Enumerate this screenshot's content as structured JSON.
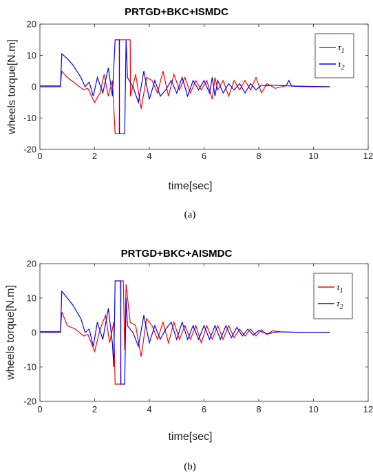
{
  "chart_data": [
    {
      "type": "line",
      "panel": "a",
      "title": "PRTGD+BKC+ISMDC",
      "xlabel": "time[sec]",
      "ylabel": "wheels torque[N.m]",
      "xlim": [
        0,
        12
      ],
      "ylim": [
        -20,
        20
      ],
      "xticks": [
        0,
        2,
        4,
        6,
        8,
        10,
        12
      ],
      "yticks": [
        -20,
        -10,
        0,
        10,
        20
      ],
      "caption": "(a)",
      "legend": {
        "position": "top-right",
        "entries": [
          "τ1",
          "τ2"
        ]
      },
      "series": [
        {
          "name": "τ1",
          "color": "#ff0000",
          "x": [
            0,
            0.75,
            0.8,
            1.0,
            1.3,
            1.6,
            1.75,
            2.0,
            2.2,
            2.35,
            2.5,
            2.65,
            2.75,
            2.76,
            2.9,
            2.91,
            3.0,
            3.1,
            3.11,
            3.3,
            3.31,
            3.5,
            3.7,
            3.9,
            4.1,
            4.3,
            4.5,
            4.7,
            4.9,
            5.1,
            5.3,
            5.5,
            5.7,
            5.9,
            6.1,
            6.3,
            6.4,
            6.5,
            6.7,
            6.9,
            7.1,
            7.3,
            7.5,
            7.7,
            7.9,
            8.1,
            8.3,
            8.6,
            9.0,
            9.5,
            10.0,
            10.6
          ],
          "y": [
            0.3,
            0.3,
            5,
            3,
            1,
            -1,
            -0.5,
            -5,
            -2,
            4,
            -3,
            2,
            -15,
            -15,
            -15,
            15,
            15,
            15,
            15,
            15,
            -3,
            4,
            -7,
            3,
            2,
            -2,
            5,
            -3,
            4,
            -1,
            3,
            -2,
            2,
            -1,
            2,
            -4,
            3,
            -1,
            2,
            -3,
            2,
            -1,
            2,
            -1,
            3,
            -2,
            1,
            -0.5,
            0.3,
            0.2,
            0.1,
            0
          ]
        },
        {
          "name": "τ2",
          "color": "#0000ff",
          "x": [
            0,
            0.75,
            0.8,
            1.0,
            1.2,
            1.35,
            1.5,
            1.65,
            1.8,
            1.95,
            2.1,
            2.3,
            2.5,
            2.65,
            2.75,
            2.76,
            2.85,
            2.9,
            2.91,
            3.0,
            3.05,
            3.1,
            3.15,
            3.2,
            3.4,
            3.6,
            3.8,
            4.0,
            4.2,
            4.4,
            4.6,
            4.8,
            5.0,
            5.2,
            5.4,
            5.6,
            5.8,
            6.0,
            6.2,
            6.3,
            6.4,
            6.5,
            6.7,
            6.9,
            7.1,
            7.3,
            7.5,
            7.7,
            7.9,
            8.1,
            8.3,
            8.5,
            9.0,
            9.1,
            9.2,
            9.5,
            10.0,
            10.6
          ],
          "y": [
            0,
            0,
            10.5,
            9,
            7,
            5,
            3,
            0,
            1.5,
            -3,
            3,
            -2,
            6,
            -3,
            15,
            15,
            15,
            15,
            -15,
            -15,
            -15,
            -15,
            15,
            3,
            0,
            -5,
            5,
            -4,
            2,
            -3,
            -1,
            2,
            -2,
            3,
            -3,
            2,
            -1,
            2,
            -2,
            3,
            -3,
            2,
            -2,
            1,
            -1,
            1,
            -2,
            1,
            -1,
            0.5,
            0.3,
            0.5,
            0.3,
            2,
            0.2,
            0.1,
            0,
            0
          ]
        }
      ]
    },
    {
      "type": "line",
      "panel": "b",
      "title": "PRTGD+BKC+AISMDC",
      "xlabel": "time[sec]",
      "ylabel": "wheels torque[N.m]",
      "xlim": [
        0,
        12
      ],
      "ylim": [
        -20,
        20
      ],
      "xticks": [
        0,
        2,
        4,
        6,
        8,
        10,
        12
      ],
      "yticks": [
        -20,
        -10,
        0,
        10,
        20
      ],
      "caption": "(b)",
      "legend": {
        "position": "top-right",
        "entries": [
          "τ1",
          "τ2"
        ]
      },
      "series": [
        {
          "name": "τ1",
          "color": "#ff0000",
          "x": [
            0,
            0.75,
            0.8,
            1.0,
            1.3,
            1.6,
            1.75,
            2.0,
            2.2,
            2.4,
            2.55,
            2.7,
            2.75,
            2.76,
            2.95,
            2.96,
            3.05,
            3.1,
            3.15,
            3.3,
            3.5,
            3.7,
            3.9,
            4.1,
            4.3,
            4.5,
            4.7,
            4.9,
            5.1,
            5.3,
            5.5,
            5.7,
            5.9,
            6.1,
            6.3,
            6.5,
            6.7,
            6.9,
            7.1,
            7.3,
            7.5,
            7.7,
            7.9,
            8.1,
            8.3,
            8.5,
            8.8,
            9.2,
            9.7,
            10.6
          ],
          "y": [
            0.3,
            0.3,
            6,
            2,
            1,
            -1,
            -0.5,
            -5.5,
            1,
            5,
            -3,
            3,
            -15,
            -15,
            -15,
            15,
            15,
            -5,
            14,
            3,
            2,
            -7,
            4,
            2,
            -2,
            3,
            -3,
            3,
            -2,
            2,
            -2,
            2,
            -3,
            2,
            -2,
            2,
            -2,
            2,
            -1.5,
            1,
            -1,
            1,
            -1,
            0.8,
            -0.6,
            0.5,
            0.2,
            0.1,
            0.05,
            0
          ]
        },
        {
          "name": "τ2",
          "color": "#0000ff",
          "x": [
            0,
            0.75,
            0.8,
            1.0,
            1.2,
            1.35,
            1.5,
            1.65,
            1.8,
            1.95,
            2.1,
            2.3,
            2.5,
            2.65,
            2.7,
            2.75,
            2.76,
            2.95,
            2.96,
            3.05,
            3.1,
            3.15,
            3.2,
            3.4,
            3.6,
            3.8,
            4.0,
            4.2,
            4.4,
            4.6,
            4.8,
            5.0,
            5.2,
            5.4,
            5.6,
            5.8,
            6.0,
            6.2,
            6.4,
            6.6,
            6.8,
            7.0,
            7.2,
            7.4,
            7.6,
            7.8,
            8.0,
            8.3,
            8.7,
            9.2,
            9.8,
            10.6
          ],
          "y": [
            0,
            0,
            12,
            10,
            8,
            6,
            4,
            0,
            1,
            -4,
            3,
            -2,
            7,
            -3,
            -10,
            15,
            15,
            15,
            -15,
            -15,
            -15,
            10,
            2,
            0,
            -4,
            5,
            -3,
            2,
            -2,
            1,
            3,
            -2,
            3,
            -2,
            2,
            -2,
            2,
            -2,
            2,
            -2,
            2,
            -1.5,
            1.5,
            -1,
            1,
            -0.8,
            0.6,
            -0.4,
            0.2,
            0.1,
            0.05,
            0
          ]
        }
      ]
    }
  ]
}
